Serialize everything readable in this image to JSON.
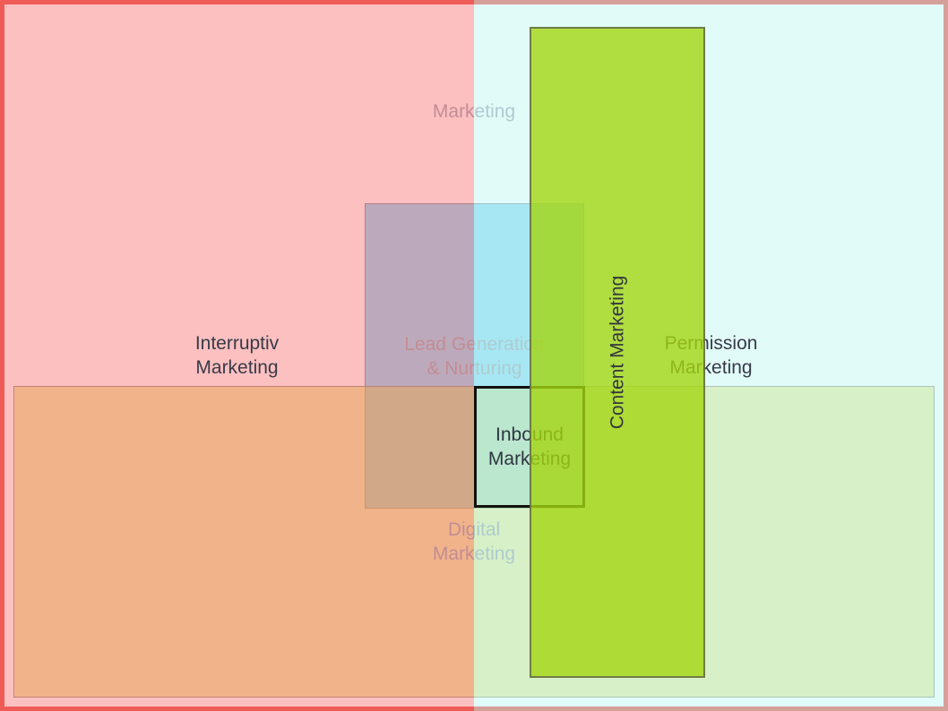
{
  "diagram": {
    "regions": {
      "marketing": {
        "label": "Marketing",
        "fill": "#ffffff",
        "stroke": "#e5372e",
        "label_color": "#8c96a6"
      },
      "lead_gen": {
        "label": "Lead Generation\n& Nurturing",
        "fill": "rgba(40,180,240,0.6)",
        "stroke": "rgba(102,102,102,0.75)",
        "label_color": "#8c96a6"
      },
      "digital": {
        "label": "Digital\nMarketing",
        "fill": "rgba(210,205,40,0.5)",
        "stroke": "rgba(102,102,102,0.75)",
        "label_color": "#8c96a6"
      },
      "permission": {
        "label": "Permission\nMarketing",
        "fill": "rgba(200,248,242,0.55)",
        "label_color": "#373a48"
      },
      "interruptiv": {
        "label": "Interruptiv\nMarketing",
        "fill": "rgba(250,130,130,0.5)",
        "label_color": "#373a48"
      },
      "inbound": {
        "label": "Inbound\nMarketing",
        "fill": "#bae7cd",
        "stroke": "#111111",
        "label_color": "#2f3542"
      },
      "content": {
        "label": "Content Marketing",
        "fill": "rgba(164,214,16,0.8)",
        "stroke": "rgba(95,100,75,0.8)",
        "label_color": "#33373f"
      }
    }
  }
}
